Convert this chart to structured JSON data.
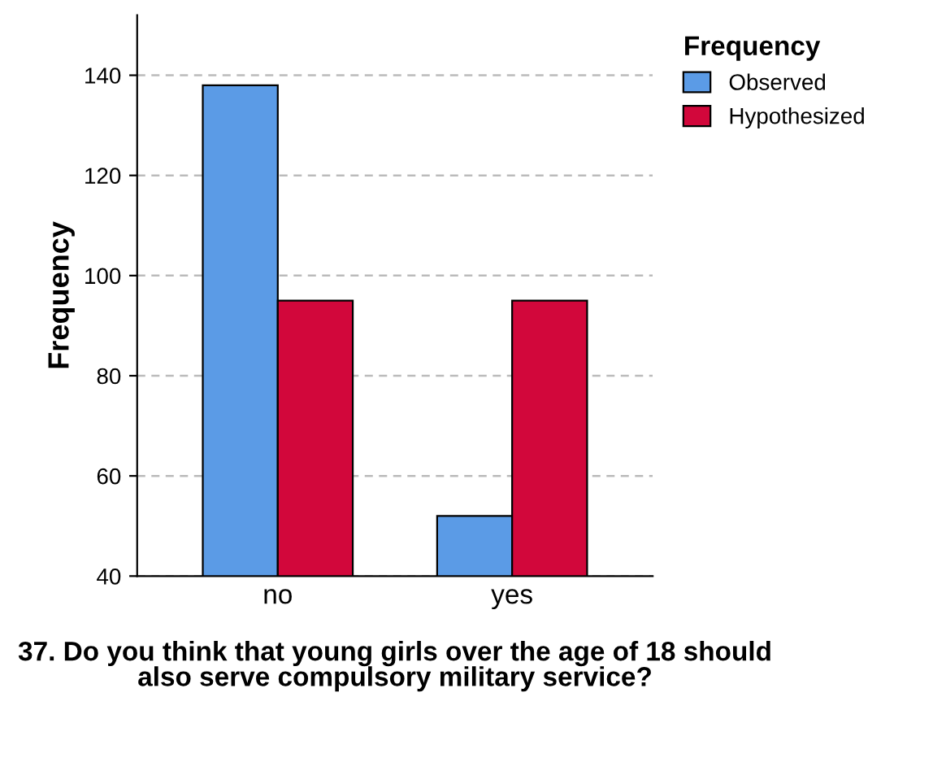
{
  "chart_data": {
    "type": "bar",
    "xlabel": "37. Do you think that young girls over the age of 18 should also serve compulsory military service?",
    "ylabel": "Frequency",
    "legend_title": "Frequency",
    "categories": [
      "no",
      "yes"
    ],
    "series": [
      {
        "name": "Observed",
        "color": "#5b9be6",
        "values": [
          138,
          52
        ]
      },
      {
        "name": "Hypothesized",
        "color": "#d2073b",
        "values": [
          95,
          95
        ]
      }
    ],
    "ylim": [
      40,
      152
    ],
    "yticks": [
      40,
      60,
      80,
      100,
      120,
      140
    ],
    "grid": "y",
    "legend": "top right"
  }
}
